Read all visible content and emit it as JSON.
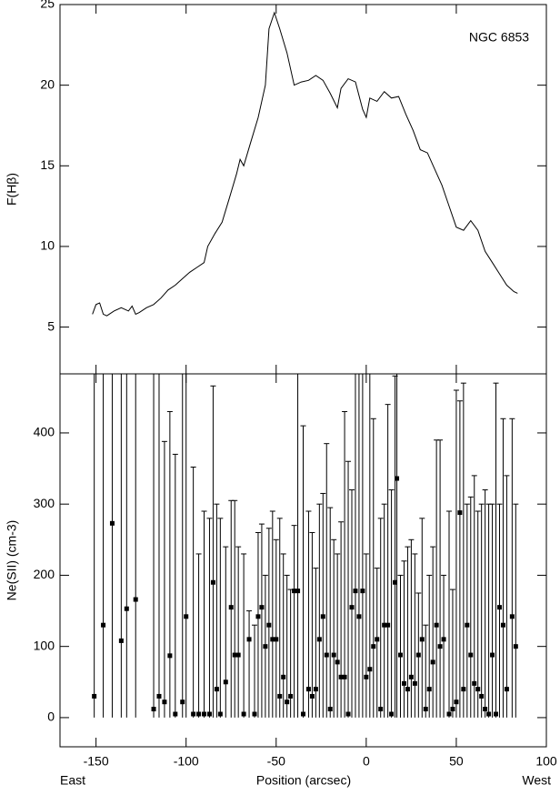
{
  "chart_data": [
    {
      "type": "line",
      "annotation": "NGC 6853",
      "ylabel": "F(Hβ)",
      "color": "#000000",
      "x": [
        -152,
        -150,
        -148,
        -146,
        -144,
        -140,
        -136,
        -132,
        -130,
        -128,
        -126,
        -122,
        -118,
        -114,
        -110,
        -106,
        -102,
        -98,
        -94,
        -90,
        -88,
        -84,
        -80,
        -76,
        -72,
        -70,
        -68,
        -64,
        -60,
        -56,
        -54,
        -51,
        -48,
        -44,
        -40,
        -36,
        -32,
        -28,
        -24,
        -20,
        -16,
        -14,
        -10,
        -6,
        -2,
        0,
        2,
        6,
        10,
        14,
        18,
        22,
        26,
        30,
        34,
        38,
        42,
        46,
        50,
        54,
        58,
        62,
        66,
        70,
        74,
        78,
        82,
        84
      ],
      "values": [
        5.8,
        6.4,
        6.5,
        5.8,
        5.7,
        6.0,
        6.2,
        6.0,
        6.3,
        5.8,
        5.9,
        6.2,
        6.4,
        6.8,
        7.3,
        7.6,
        8.0,
        8.4,
        8.7,
        9.0,
        10.0,
        10.8,
        11.5,
        13.0,
        14.5,
        15.4,
        15.0,
        16.5,
        18.0,
        20.0,
        23.5,
        24.5,
        23.5,
        22.0,
        20.0,
        20.2,
        20.3,
        20.6,
        20.3,
        19.5,
        18.6,
        19.8,
        20.4,
        20.2,
        18.5,
        18.0,
        19.2,
        19.0,
        19.6,
        19.2,
        19.3,
        18.2,
        17.2,
        16.0,
        15.8,
        14.8,
        13.8,
        12.5,
        11.2,
        11.0,
        11.6,
        11.0,
        9.7,
        9.0,
        8.3,
        7.6,
        7.2,
        7.1
      ],
      "xlim": [
        -170,
        100
      ],
      "xticks": [
        -150,
        -100,
        -50,
        0,
        50,
        100
      ],
      "ylim": [
        2.1,
        25
      ],
      "yticks": [
        5,
        10,
        15,
        20,
        25
      ]
    },
    {
      "type": "errorbar",
      "ylabel": "Ne(SII) (cm-3)",
      "xlabel": "Position (arcsec)",
      "annotations": [
        "East",
        "West"
      ],
      "color": "#000000",
      "x": [
        -151,
        -146,
        -141,
        -136,
        -133,
        -128,
        -118,
        -115,
        -112,
        -109,
        -106,
        -102,
        -100,
        -96,
        -93,
        -90,
        -87,
        -85,
        -83,
        -81,
        -78,
        -75,
        -73,
        -71,
        -68,
        -65,
        -62,
        -60,
        -58,
        -56,
        -54,
        -52,
        -50,
        -48,
        -46,
        -44,
        -42,
        -40,
        -38,
        -35,
        -32,
        -30,
        -28,
        -26,
        -24,
        -22,
        -20,
        -18,
        -16,
        -14,
        -12,
        -10,
        -8,
        -6,
        -4,
        -2,
        0,
        2,
        4,
        6,
        8,
        10,
        12,
        14,
        16,
        17,
        19,
        21,
        23,
        25,
        27,
        29,
        31,
        33,
        35,
        37,
        39,
        41,
        43,
        46,
        48,
        50,
        52,
        54,
        56,
        58,
        60,
        62,
        64,
        66,
        68,
        70,
        72,
        74,
        76,
        78,
        81,
        83
      ],
      "values": [
        30,
        130,
        273,
        108,
        153,
        166,
        12,
        30,
        22,
        87,
        5,
        22,
        142,
        5,
        5,
        5,
        5,
        190,
        40,
        5,
        50,
        155,
        88,
        88,
        5,
        110,
        5,
        142,
        155,
        100,
        130,
        110,
        110,
        30,
        57,
        22,
        30,
        178,
        178,
        5,
        40,
        30,
        40,
        110,
        142,
        88,
        12,
        88,
        78,
        57,
        57,
        5,
        155,
        178,
        142,
        178,
        57,
        68,
        100,
        110,
        12,
        130,
        130,
        5,
        190,
        336,
        88,
        48,
        40,
        57,
        48,
        88,
        110,
        12,
        40,
        78,
        130,
        100,
        110,
        5,
        12,
        22,
        288,
        40,
        130,
        88,
        48,
        40,
        30,
        12,
        5,
        88,
        5,
        155,
        130,
        40,
        142,
        100
      ],
      "lower": [
        0,
        0,
        0,
        0,
        0,
        0,
        0,
        0,
        0,
        0,
        0,
        0,
        0,
        0,
        0,
        0,
        0,
        0,
        0,
        0,
        0,
        0,
        0,
        0,
        0,
        0,
        0,
        0,
        0,
        0,
        0,
        0,
        0,
        0,
        0,
        0,
        0,
        0,
        0,
        0,
        0,
        0,
        0,
        0,
        0,
        0,
        0,
        0,
        0,
        0,
        0,
        0,
        0,
        0,
        0,
        0,
        0,
        0,
        0,
        0,
        0,
        0,
        0,
        0,
        0,
        0,
        0,
        0,
        0,
        0,
        0,
        0,
        0,
        0,
        0,
        0,
        0,
        0,
        0,
        0,
        0,
        0,
        0,
        0,
        0,
        0,
        0,
        0,
        0,
        0,
        0,
        0,
        0,
        0,
        0,
        0,
        0,
        0
      ],
      "upper": [
        483,
        483,
        483,
        483,
        483,
        483,
        483,
        483,
        388,
        430,
        370,
        483,
        483,
        352,
        230,
        290,
        280,
        466,
        300,
        280,
        240,
        305,
        305,
        240,
        230,
        150,
        130,
        260,
        272,
        200,
        266,
        290,
        250,
        280,
        230,
        200,
        180,
        270,
        483,
        410,
        290,
        260,
        210,
        300,
        315,
        385,
        295,
        250,
        230,
        275,
        430,
        360,
        320,
        483,
        483,
        483,
        230,
        483,
        420,
        210,
        280,
        300,
        440,
        320,
        480,
        483,
        200,
        220,
        240,
        250,
        230,
        175,
        280,
        130,
        200,
        240,
        390,
        390,
        200,
        290,
        180,
        460,
        445,
        470,
        300,
        310,
        340,
        290,
        300,
        320,
        300,
        300,
        470,
        300,
        420,
        340,
        420,
        300
      ],
      "xlim": [
        -170,
        100
      ],
      "xticks": [
        -150,
        -100,
        -50,
        0,
        50,
        100
      ],
      "ylim": [
        -41,
        483
      ],
      "yticks": [
        0,
        100,
        200,
        300,
        400
      ]
    }
  ]
}
